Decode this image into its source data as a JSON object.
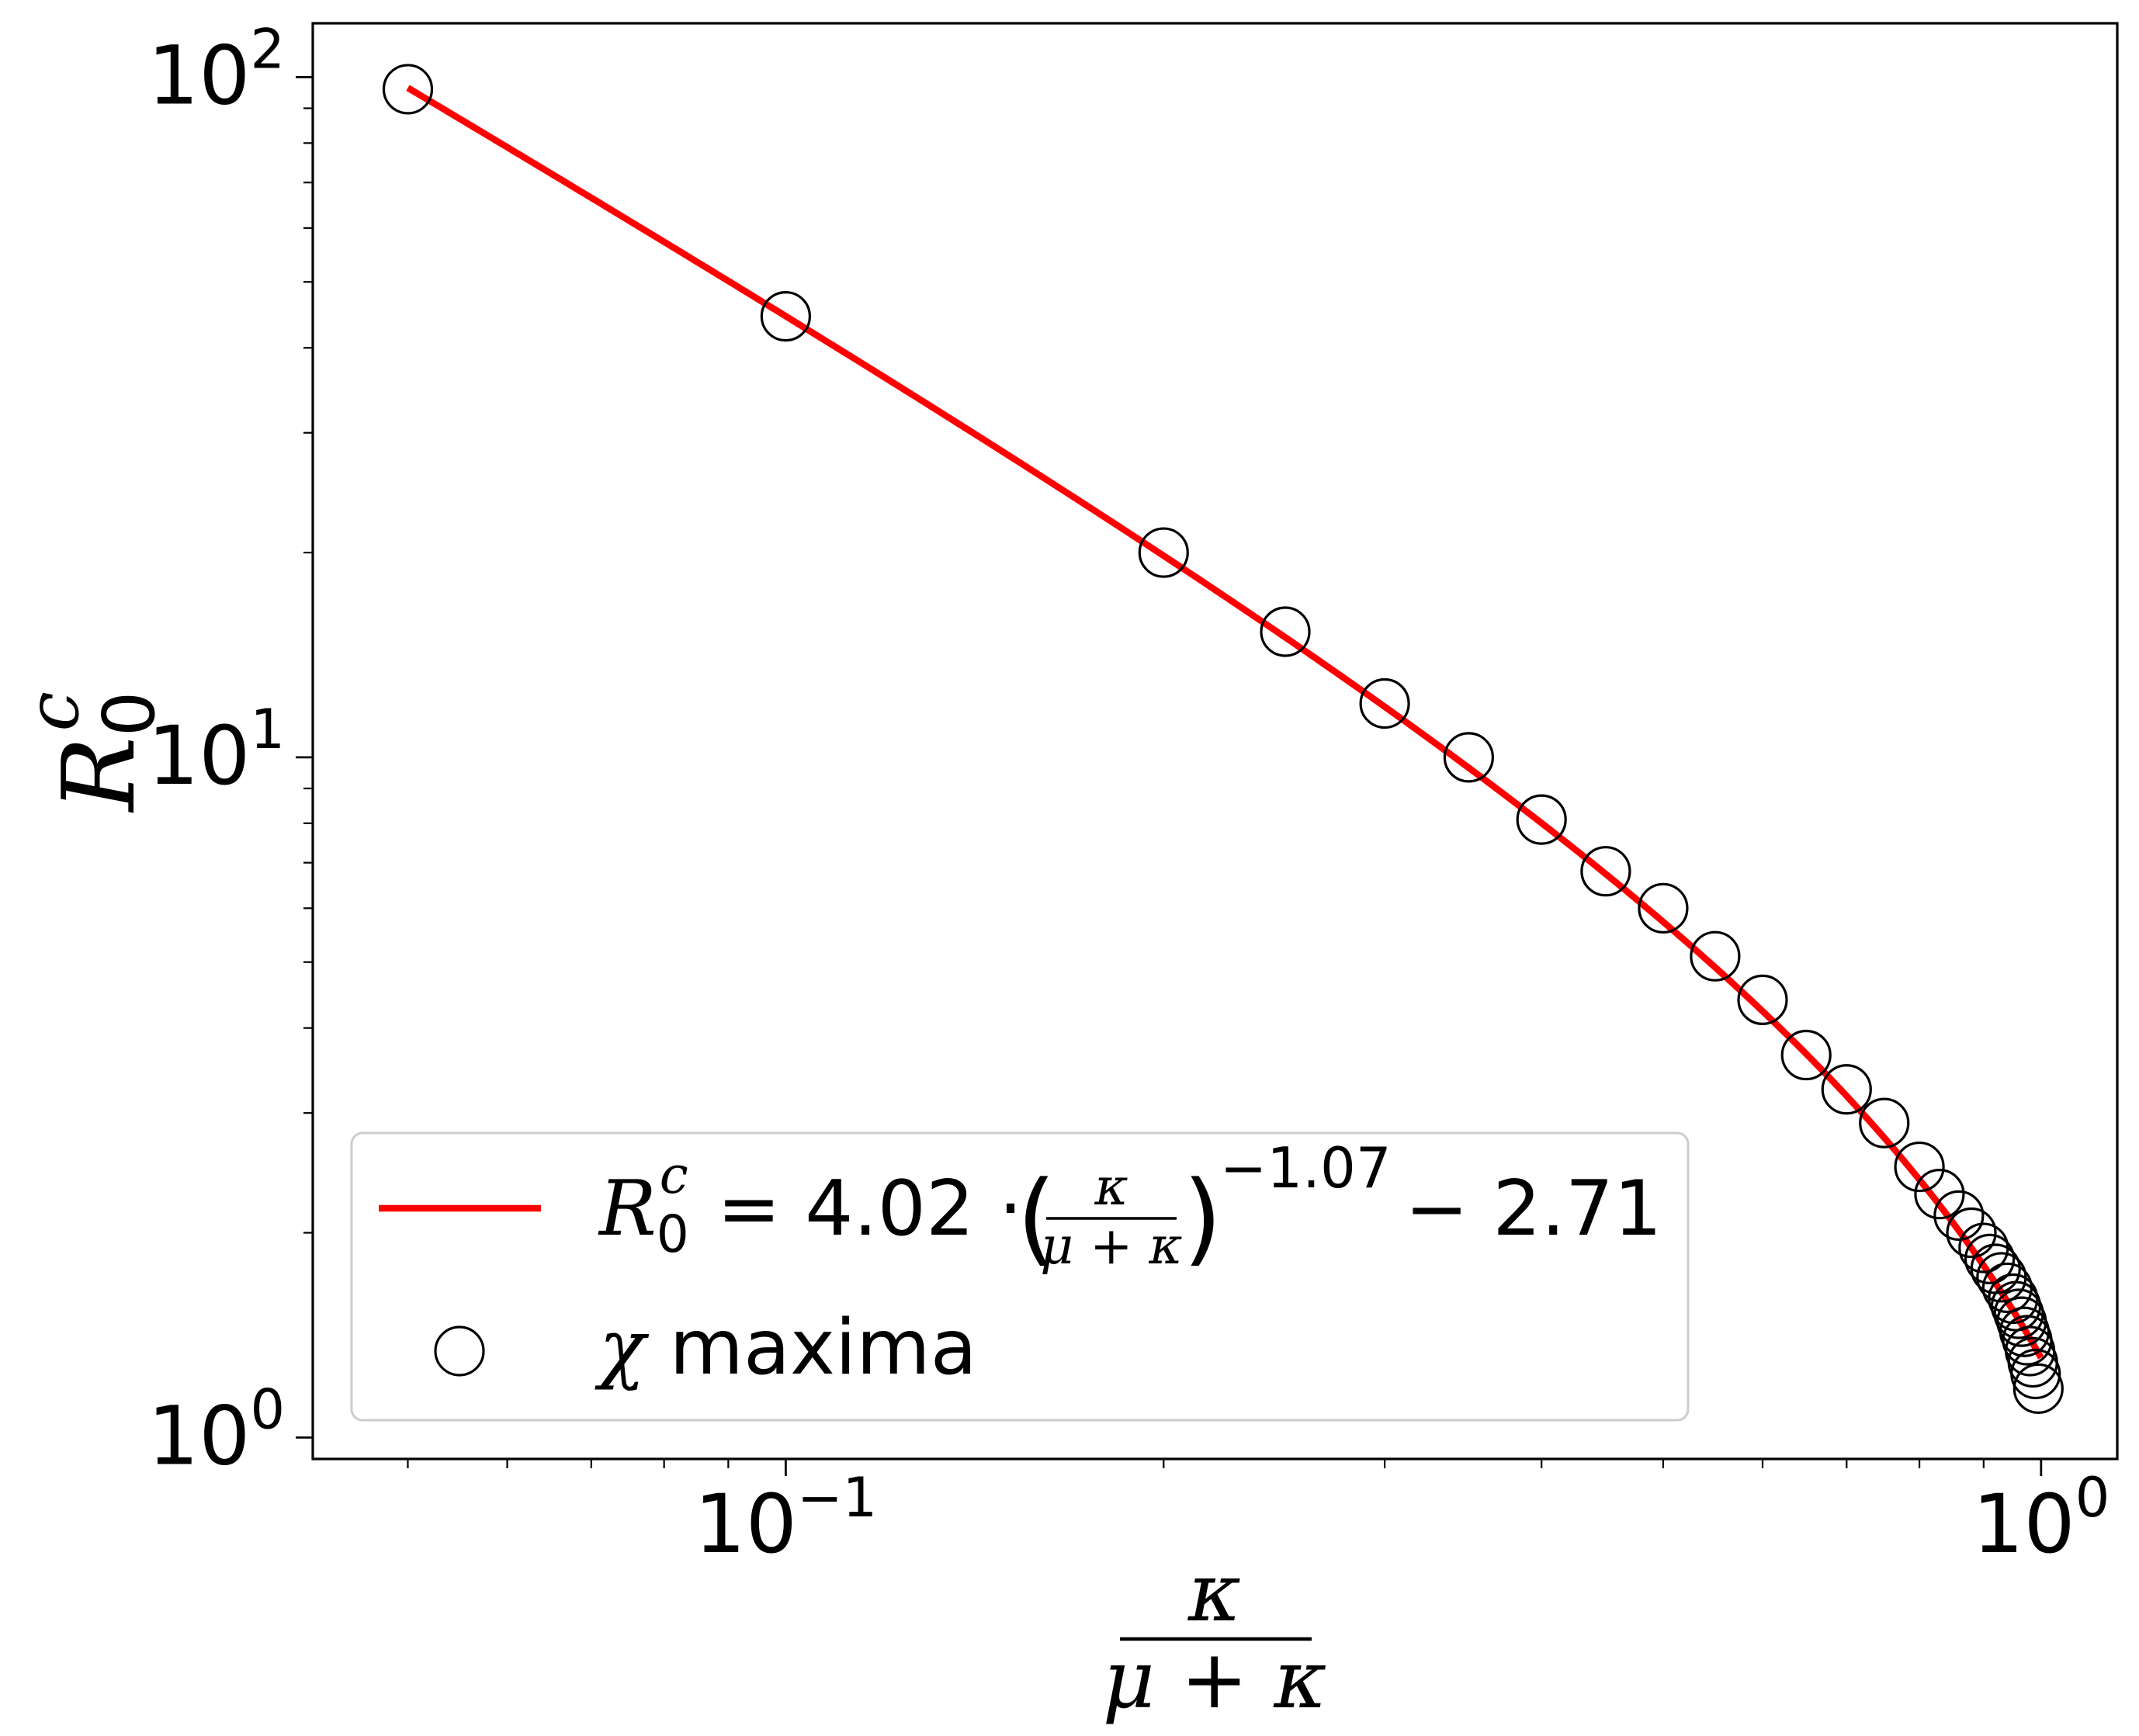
{
  "chart_data": {
    "type": "scatter",
    "xscale": "log",
    "yscale": "log",
    "xlim": [
      0.042,
      1.15
    ],
    "ylim": [
      0.93,
      120
    ],
    "grid": false,
    "legend_placement": "lower-left",
    "xlabel": {
      "numerator": "κ",
      "denominator_left": "μ",
      "denominator_op": "+",
      "denominator_right": "κ"
    },
    "ylabel": {
      "main": "R",
      "sub": "0",
      "sup": "c"
    },
    "x_ticks": [
      {
        "value": 0.1,
        "base": "10",
        "exp": "−1"
      },
      {
        "value": 1,
        "base": "10",
        "exp": "0"
      }
    ],
    "y_ticks": [
      {
        "value": 1,
        "base": "10",
        "exp": "0"
      },
      {
        "value": 10,
        "base": "10",
        "exp": "1"
      },
      {
        "value": 100,
        "base": "10",
        "exp": "2"
      }
    ],
    "series": [
      {
        "kind": "line",
        "color": "#ff0000",
        "fit": {
          "a": 4.02,
          "b": -1.07,
          "c": -2.71
        },
        "x_range": [
          0.05,
          1.0
        ],
        "legend": {
          "lhs_main": "R",
          "lhs_sub": "0",
          "lhs_sup": "c",
          "equals": "=",
          "coef": "4.02",
          "dot": "·",
          "frac_num": "κ",
          "frac_den": "μ + κ",
          "exponent": "−1.07",
          "minus": "−",
          "offset": "2.71"
        }
      },
      {
        "kind": "markers",
        "marker": "open-circle",
        "color": "#000000",
        "legend": {
          "symbol": "χ",
          "text": " maxima"
        },
        "x": [
          0.05,
          0.1,
          0.2,
          0.25,
          0.3,
          0.35,
          0.4,
          0.45,
          0.5,
          0.55,
          0.6,
          0.65,
          0.7,
          0.75,
          0.8,
          0.83,
          0.86,
          0.88,
          0.9,
          0.91,
          0.92,
          0.93,
          0.94,
          0.95,
          0.955,
          0.96,
          0.965,
          0.97,
          0.975,
          0.98,
          0.985,
          0.99,
          0.995
        ],
        "y": [
          96,
          44.5,
          20,
          15.3,
          12,
          10,
          8.1,
          6.8,
          6.0,
          5.1,
          4.4,
          3.65,
          3.25,
          2.9,
          2.5,
          2.28,
          2.12,
          2.0,
          1.9,
          1.83,
          1.77,
          1.72,
          1.66,
          1.6,
          1.56,
          1.52,
          1.48,
          1.43,
          1.39,
          1.34,
          1.29,
          1.24,
          1.18
        ]
      }
    ]
  }
}
